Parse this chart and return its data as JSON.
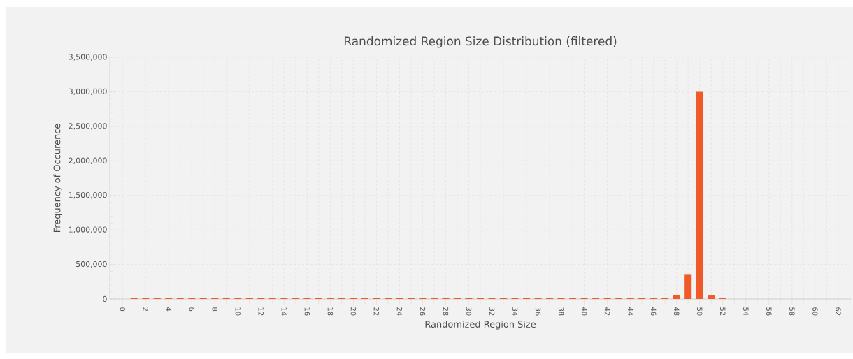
{
  "chart_data": {
    "type": "bar",
    "title": "Randomized Region Size Distribution (filtered)",
    "xlabel": "Randomized Region Size",
    "ylabel": "Frequency of Occurence",
    "categories": [
      "0",
      null,
      "2",
      null,
      "4",
      null,
      "6",
      null,
      "8",
      null,
      "10",
      null,
      "12",
      null,
      "14",
      null,
      "16",
      null,
      "18",
      null,
      "20",
      null,
      "22",
      null,
      "24",
      null,
      "26",
      null,
      "28",
      null,
      "30",
      null,
      "32",
      null,
      "34",
      null,
      "36",
      null,
      "38",
      null,
      "40",
      null,
      "42",
      null,
      "44",
      null,
      "46",
      null,
      "48",
      null,
      "50",
      null,
      "52",
      null,
      "54",
      null,
      "56",
      null,
      "58",
      null,
      "60",
      null,
      "62",
      null
    ],
    "values": [
      0,
      10000,
      10000,
      10000,
      10000,
      10000,
      10000,
      10000,
      10000,
      10000,
      10000,
      10000,
      10000,
      10000,
      10000,
      10000,
      10000,
      10000,
      10000,
      10000,
      10000,
      10000,
      10000,
      10000,
      10000,
      10000,
      10000,
      10000,
      10000,
      10000,
      10000,
      10000,
      10000,
      10000,
      10000,
      10000,
      10000,
      10000,
      10000,
      10000,
      10000,
      10000,
      10000,
      10000,
      10000,
      10000,
      10000,
      20000,
      60000,
      350000,
      3000000,
      50000,
      10000,
      0,
      0,
      0,
      0,
      0,
      0,
      0,
      0,
      0,
      0,
      0
    ],
    "color": "#f05a28",
    "ylim": [
      0,
      3500000
    ],
    "yticks": [
      {
        "value": 0,
        "label": "0"
      },
      {
        "value": 500000,
        "label": "500,000"
      },
      {
        "value": 1000000,
        "label": "1,000,000"
      },
      {
        "value": 1500000,
        "label": "1,500,000"
      },
      {
        "value": 2000000,
        "label": "2,000,000"
      },
      {
        "value": 2500000,
        "label": "2,500,000"
      },
      {
        "value": 3000000,
        "label": "3,000,000"
      },
      {
        "value": 3500000,
        "label": "3,500,000"
      }
    ],
    "grid": true
  }
}
